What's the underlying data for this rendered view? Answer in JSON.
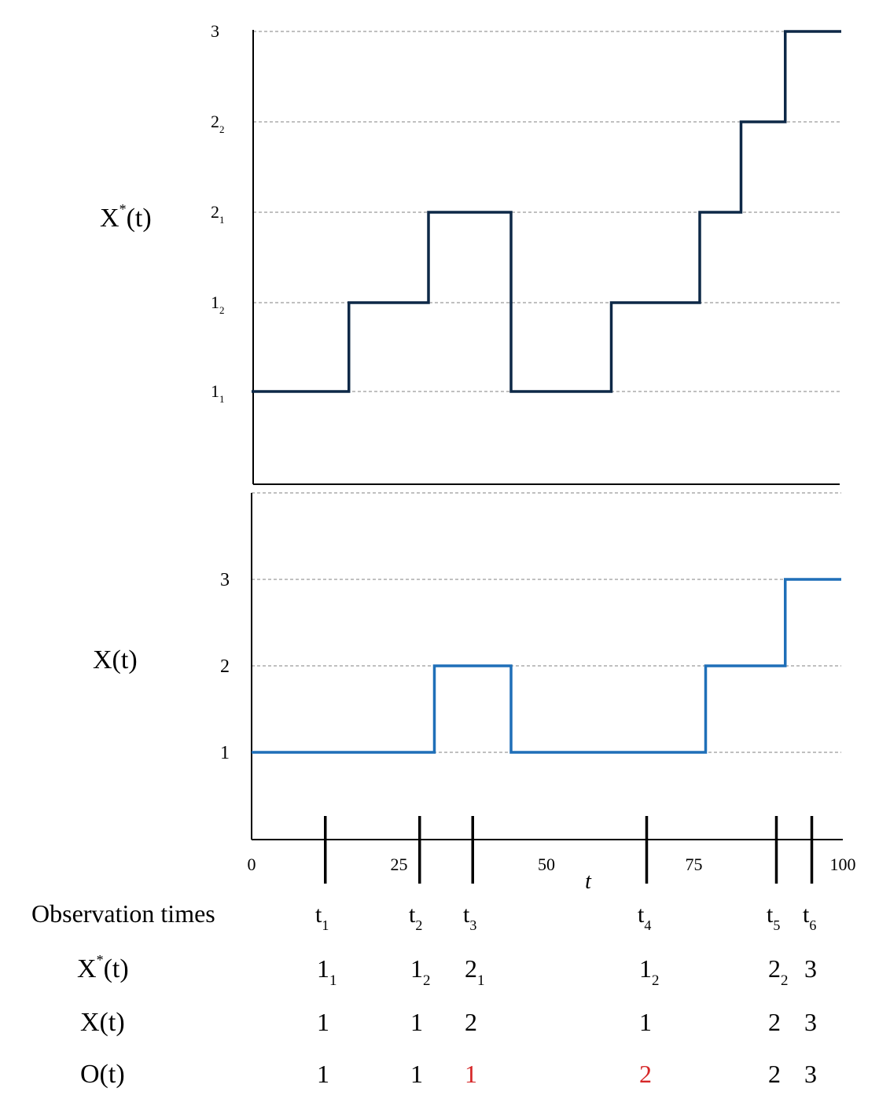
{
  "chart_data": [
    {
      "type": "line",
      "step": true,
      "ylabel": "X*(t)",
      "ylabel_main": "X",
      "ylabel_sup": "*",
      "ylabel_tail": "(t)",
      "yticks": [
        {
          "base": "1",
          "sub": "1"
        },
        {
          "base": "1",
          "sub": "2"
        },
        {
          "base": "2",
          "sub": "1"
        },
        {
          "base": "2",
          "sub": "2"
        },
        {
          "base": "3",
          "sub": ""
        }
      ],
      "grid": true,
      "color": "#0d2847",
      "xlim": [
        0,
        100
      ],
      "series": [
        {
          "x": [
            0,
            16.5,
            30,
            44,
            61,
            76,
            83,
            90.5,
            100
          ],
          "y": [
            1,
            2,
            3,
            1,
            2,
            3,
            4,
            5,
            5
          ]
        }
      ]
    },
    {
      "type": "line",
      "step": true,
      "ylabel": "X(t)",
      "yticks": [
        "1",
        "2",
        "3"
      ],
      "grid": true,
      "color": "#1f6fb8",
      "xlim": [
        0,
        100
      ],
      "xlabel": "t",
      "xticks": [
        "0",
        "25",
        "50",
        "75",
        "100"
      ],
      "series": [
        {
          "x": [
            0,
            31,
            44,
            77,
            90.5,
            100
          ],
          "y": [
            1,
            2,
            1,
            2,
            3,
            3
          ]
        }
      ],
      "observation_times": [
        12.5,
        28.5,
        37.5,
        67,
        89,
        95
      ]
    }
  ],
  "table": {
    "header_label": "Observation times",
    "times": [
      {
        "base": "t",
        "sub": "1"
      },
      {
        "base": "t",
        "sub": "2"
      },
      {
        "base": "t",
        "sub": "3"
      },
      {
        "base": "t",
        "sub": "4"
      },
      {
        "base": "t",
        "sub": "5"
      },
      {
        "base": "t",
        "sub": "6"
      }
    ],
    "rows": [
      {
        "label": "X*(t)",
        "label_main": "X",
        "label_sup": "*",
        "label_tail": "(t)",
        "cells": [
          {
            "base": "1",
            "sub": "1"
          },
          {
            "base": "1",
            "sub": "2"
          },
          {
            "base": "2",
            "sub": "1"
          },
          {
            "base": "1",
            "sub": "2"
          },
          {
            "base": "2",
            "sub": "2"
          },
          {
            "base": "3",
            "sub": ""
          }
        ]
      },
      {
        "label": "X(t)",
        "cells": [
          {
            "base": "1"
          },
          {
            "base": "1"
          },
          {
            "base": "2"
          },
          {
            "base": "1"
          },
          {
            "base": "2"
          },
          {
            "base": "3"
          }
        ]
      },
      {
        "label": "O(t)",
        "cells": [
          {
            "base": "1"
          },
          {
            "base": "1"
          },
          {
            "base": "1",
            "highlight": true
          },
          {
            "base": "2",
            "highlight": true
          },
          {
            "base": "2"
          },
          {
            "base": "3"
          }
        ]
      }
    ],
    "highlight_color": "#d62728"
  }
}
